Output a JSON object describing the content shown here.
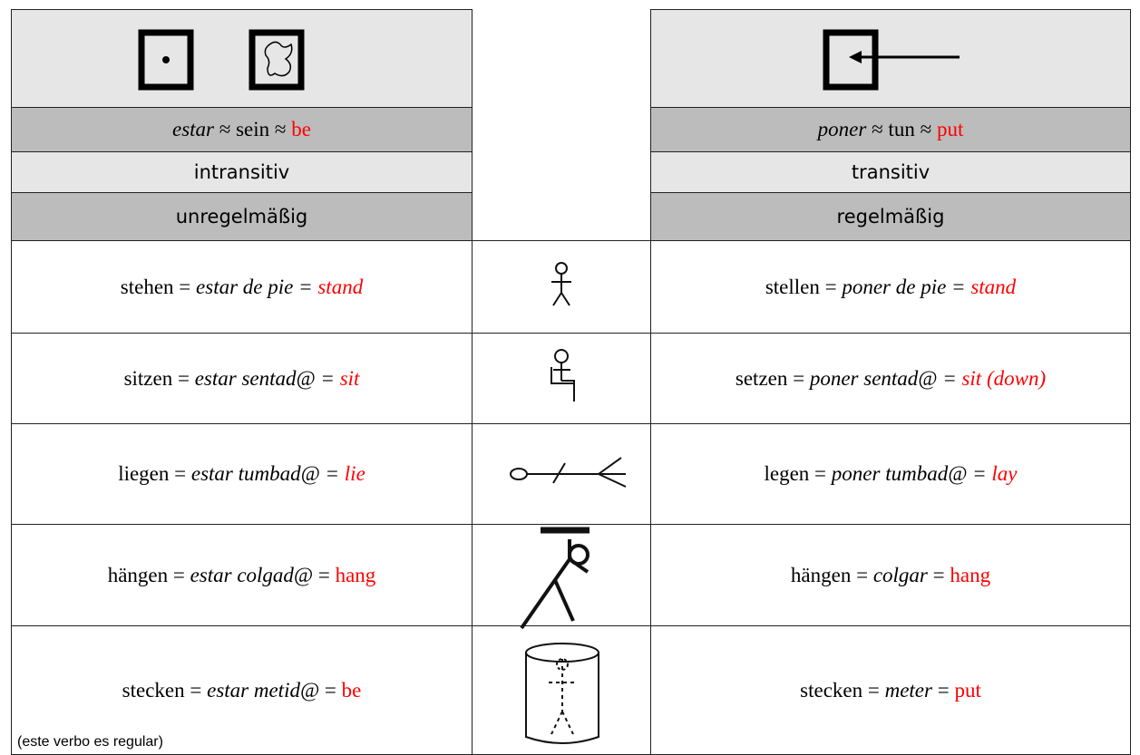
{
  "left": {
    "verb": [
      {
        "text": "estar",
        "italic": true
      },
      {
        "text": " ≈ sein ≈ "
      },
      {
        "text": "be",
        "color": "red"
      }
    ],
    "transitivity": "intransitiv",
    "regularity": "unregelmäßig"
  },
  "right": {
    "verb": [
      {
        "text": "poner",
        "italic": true
      },
      {
        "text": " ≈ tun ≈ "
      },
      {
        "text": "put",
        "color": "red"
      }
    ],
    "transitivity": "transitiv",
    "regularity": "regelmäßig"
  },
  "rows": [
    {
      "left": [
        {
          "text": "stehen = "
        },
        {
          "text": "estar de pie = ",
          "italic": true
        },
        {
          "text": "stand",
          "italic": true,
          "color": "red"
        }
      ],
      "right": [
        {
          "text": "stellen = "
        },
        {
          "text": "poner de pie = ",
          "italic": true
        },
        {
          "text": "stand",
          "italic": true,
          "color": "red"
        }
      ]
    },
    {
      "left": [
        {
          "text": "sitzen = "
        },
        {
          "text": "estar sentad@ = ",
          "italic": true
        },
        {
          "text": "sit",
          "italic": true,
          "color": "red"
        }
      ],
      "right": [
        {
          "text": "setzen = "
        },
        {
          "text": "poner sentad@ = ",
          "italic": true
        },
        {
          "text": "sit (down)",
          "italic": true,
          "color": "red"
        }
      ]
    },
    {
      "left": [
        {
          "text": "liegen = "
        },
        {
          "text": "estar tumbad@ = ",
          "italic": true
        },
        {
          "text": "lie",
          "italic": true,
          "color": "red"
        }
      ],
      "right": [
        {
          "text": "legen = "
        },
        {
          "text": "poner tumbad@ = ",
          "italic": true
        },
        {
          "text": "lay",
          "italic": true,
          "color": "red"
        }
      ]
    },
    {
      "left": [
        {
          "text": "hängen = "
        },
        {
          "text": "estar colgad@",
          "italic": true
        },
        {
          "text": " = "
        },
        {
          "text": "hang",
          "color": "red"
        }
      ],
      "right": [
        {
          "text": "hängen = "
        },
        {
          "text": "colgar",
          "italic": true
        },
        {
          "text": " = "
        },
        {
          "text": "hang",
          "color": "red"
        }
      ]
    },
    {
      "left": [
        {
          "text": "stecken = "
        },
        {
          "text": "estar metid@",
          "italic": true
        },
        {
          "text": " = "
        },
        {
          "text": "be",
          "color": "red"
        }
      ],
      "note": "(este verbo es regular)",
      "right": [
        {
          "text": "stecken = "
        },
        {
          "text": "meter",
          "italic": true
        },
        {
          "text": " = "
        },
        {
          "text": "put",
          "color": "red"
        }
      ]
    }
  ]
}
